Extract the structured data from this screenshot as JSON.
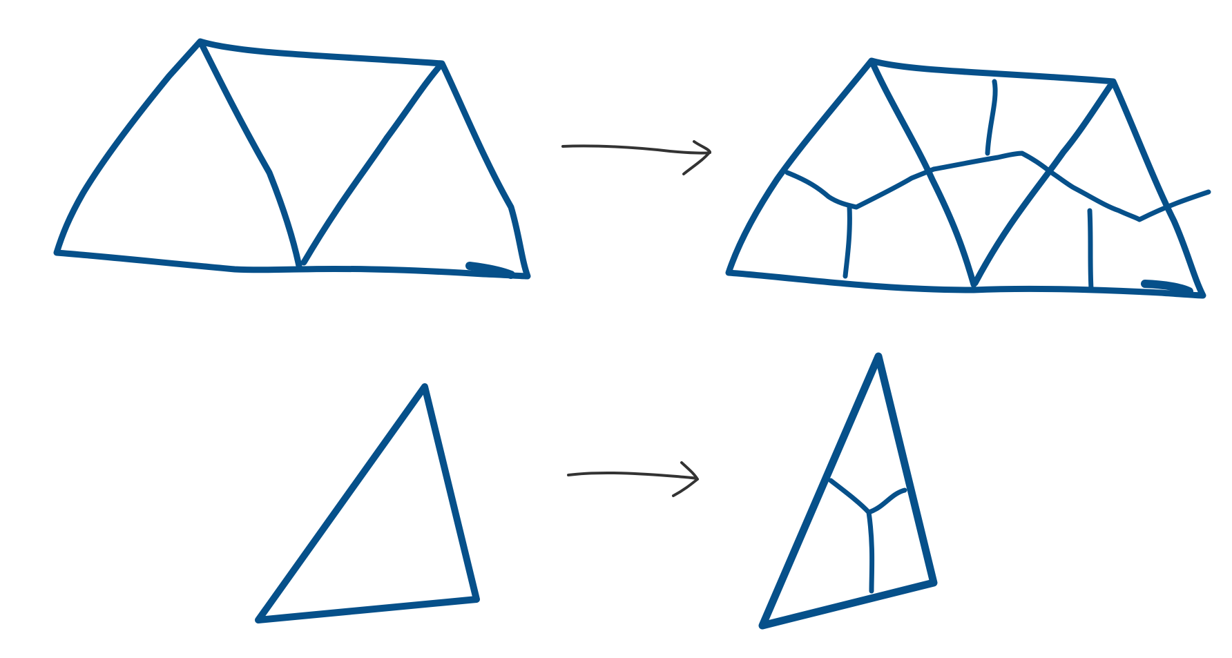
{
  "diagram": {
    "description_visible_text": [],
    "colors": {
      "shape_stroke": "#06508a",
      "arrow_stroke": "#333333",
      "background": "#ffffff"
    },
    "rows": [
      {
        "id": "trapezoid-row",
        "source": {
          "shape": "trapezoid",
          "triangles": 3
        },
        "arrow": {
          "direction": "right"
        },
        "result": {
          "shape": "trapezoid",
          "triangles": 3,
          "subdivided_into_quads": true
        }
      },
      {
        "id": "triangle-row",
        "source": {
          "shape": "triangle",
          "triangles": 1
        },
        "arrow": {
          "direction": "right"
        },
        "result": {
          "shape": "triangle",
          "triangles": 1,
          "subdivided_into_quads": true,
          "quads": 3
        }
      }
    ]
  }
}
